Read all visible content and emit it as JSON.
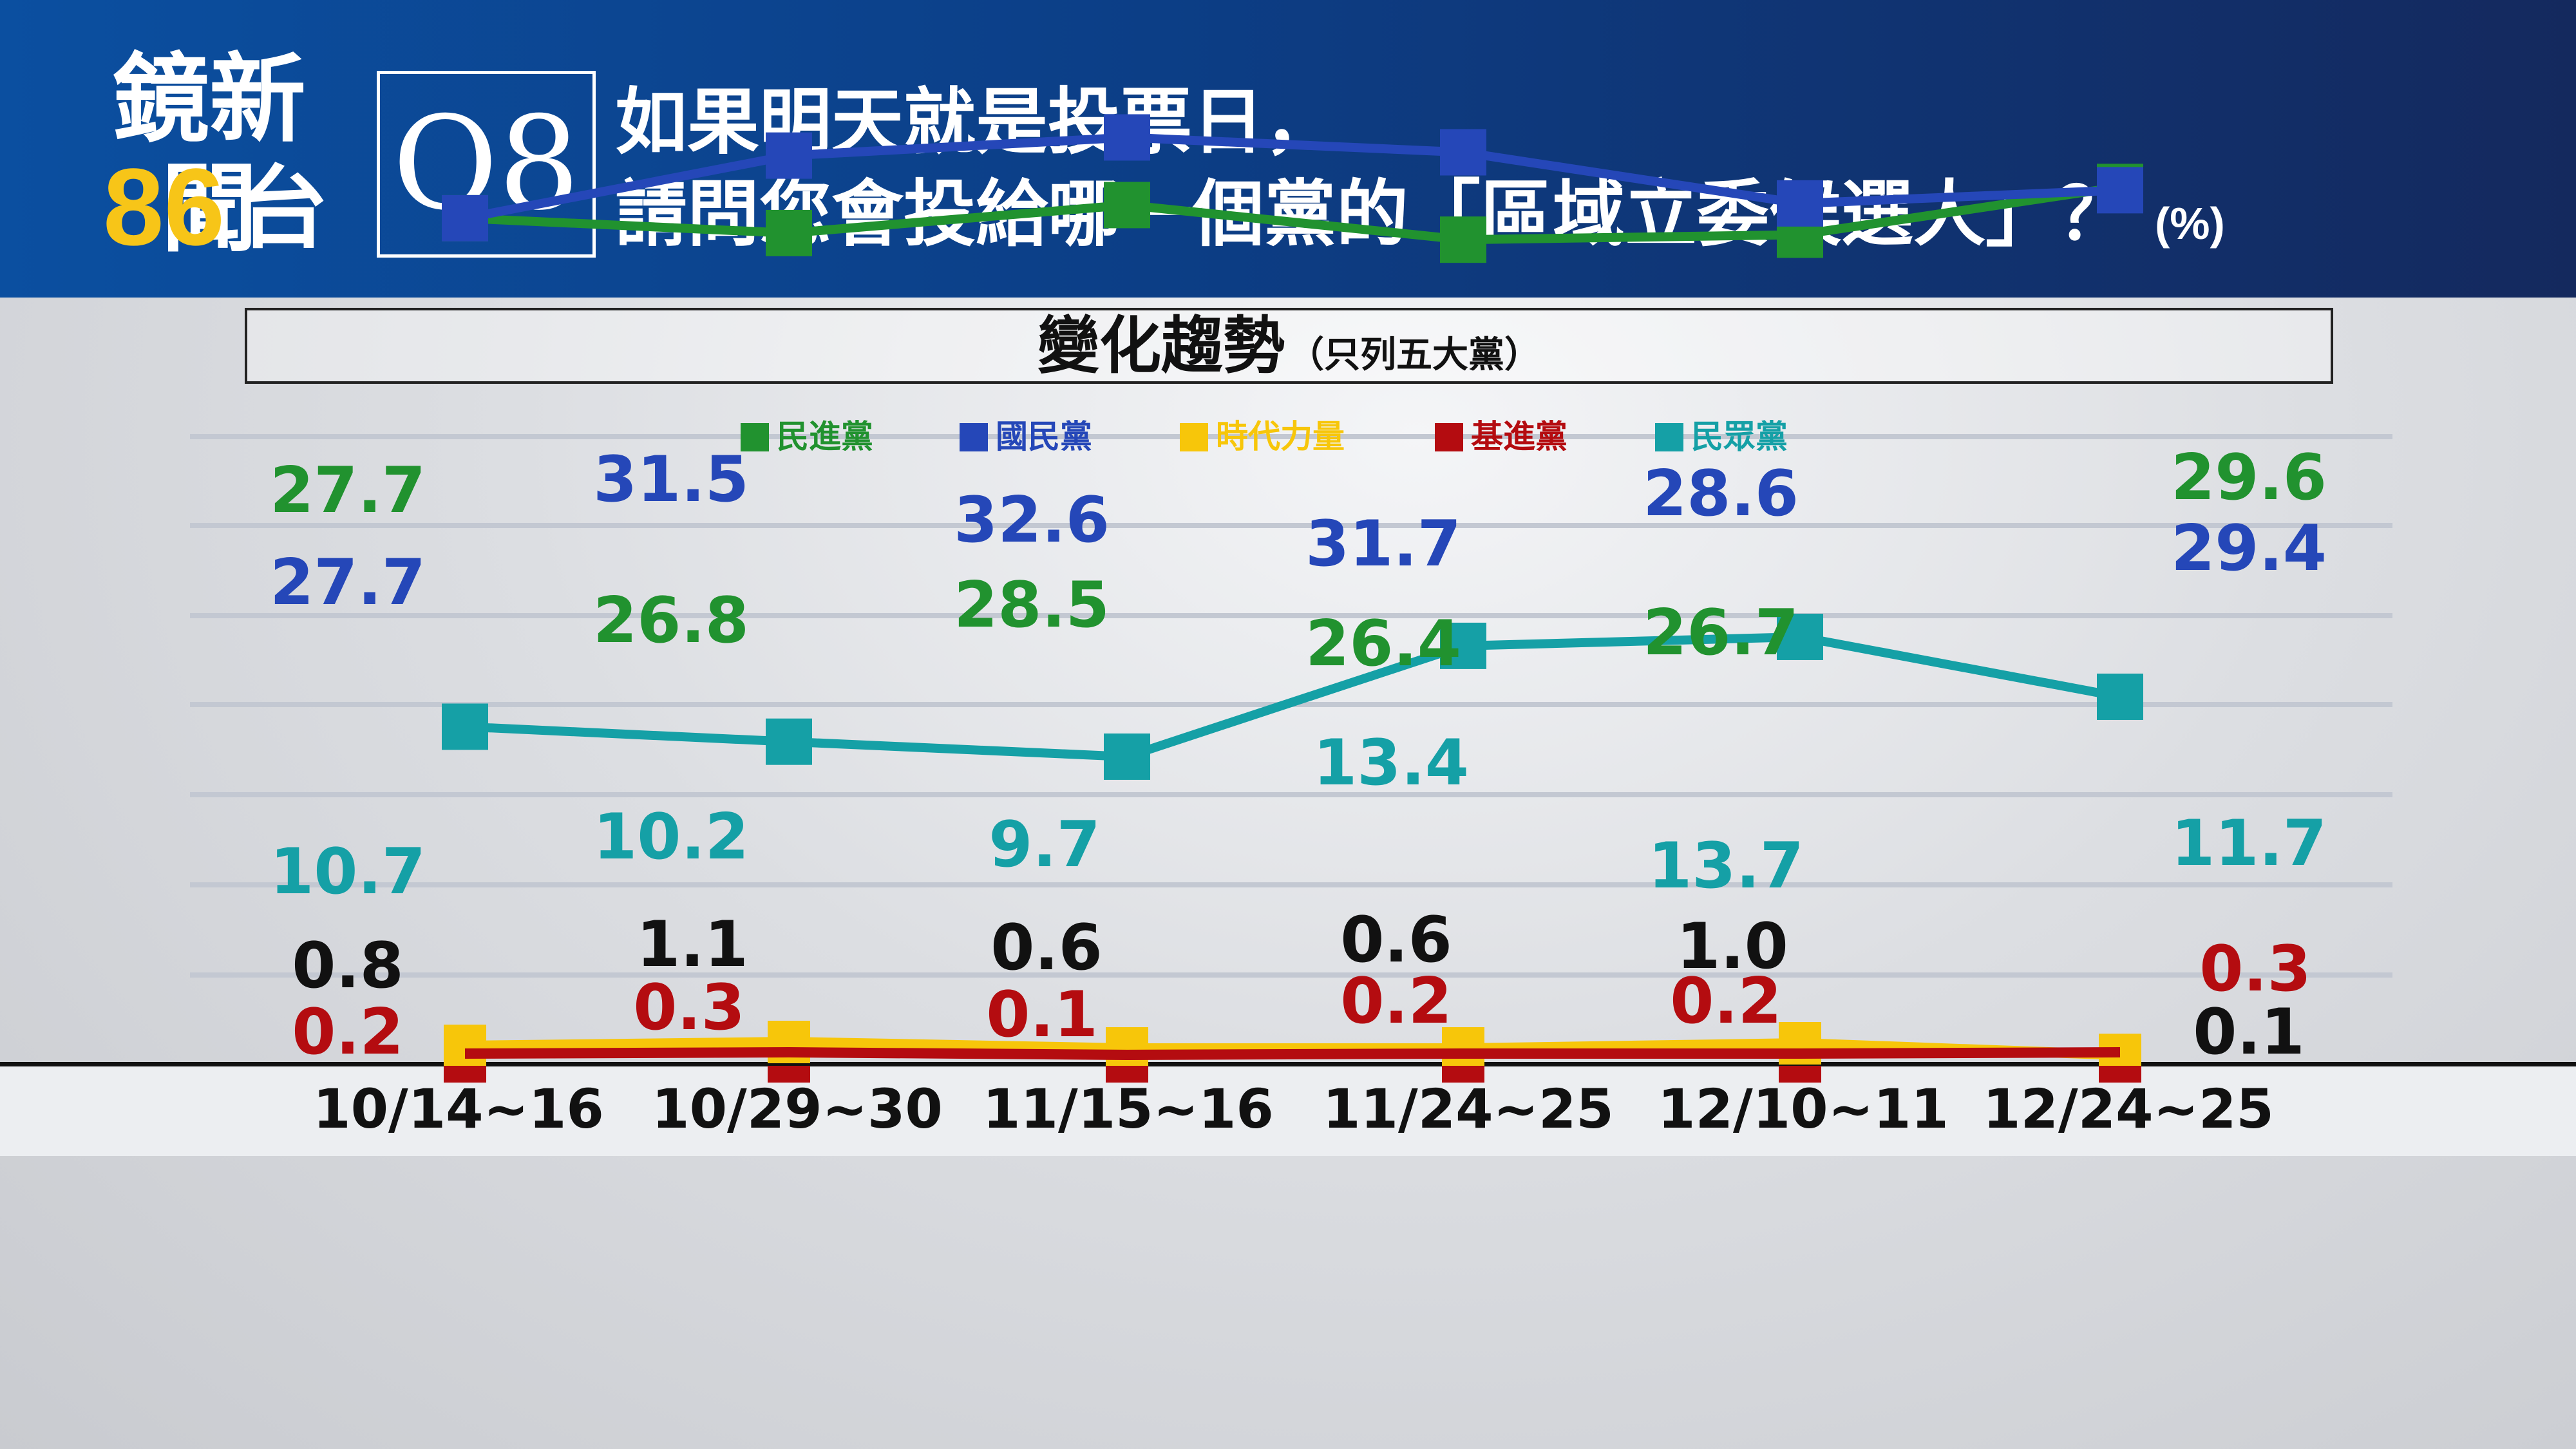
{
  "header": {
    "logo_name": "鏡新聞",
    "logo_number": "86",
    "logo_suffix": "台",
    "question_badge": "Q8",
    "question_line1": "如果明天就是投票日，",
    "question_line2": "請問您會投給哪一個黨的「區域立委候選人」？",
    "unit": "(%)"
  },
  "chart_title": "變化趨勢",
  "chart_subtitle": "（只列五大黨）",
  "colors": {
    "民進黨": "#21922f",
    "國民黨": "#2547b8",
    "時代力量": "#f7c60a",
    "基進黨": "#b40c10",
    "民眾黨": "#15a0a6"
  },
  "chart_data": {
    "type": "line",
    "categories": [
      "10/14~16",
      "10/29~30",
      "11/15~16",
      "11/24~25",
      "12/10~11",
      "12/24~25"
    ],
    "series": [
      {
        "name": "民進黨",
        "values": [
          27.7,
          26.8,
          28.5,
          26.4,
          26.7,
          29.6
        ],
        "labels": [
          "27.7",
          "26.8",
          "28.5",
          "26.4",
          "26.7",
          "29.6"
        ]
      },
      {
        "name": "國民黨",
        "values": [
          27.7,
          31.5,
          32.6,
          31.7,
          28.6,
          29.4
        ],
        "labels": [
          "27.7",
          "31.5",
          "32.6",
          "31.7",
          "28.6",
          "29.4"
        ]
      },
      {
        "name": "時代力量",
        "values": [
          0.8,
          1.1,
          0.6,
          0.6,
          1.0,
          0.1
        ],
        "labels": [
          "0.8",
          "1.1",
          "0.6",
          "0.6",
          "1.0",
          "0.1"
        ]
      },
      {
        "name": "基進黨",
        "values": [
          0.2,
          0.3,
          0.1,
          0.2,
          0.2,
          0.3
        ],
        "labels": [
          "0.2",
          "0.3",
          "0.1",
          "0.2",
          "0.2",
          "0.3"
        ]
      },
      {
        "name": "民眾黨",
        "values": [
          10.7,
          10.2,
          9.7,
          13.4,
          13.7,
          11.7
        ],
        "labels": [
          "10.7",
          "10.2",
          "9.7",
          "13.4",
          "13.7",
          "11.7"
        ]
      }
    ],
    "legend_position": "top",
    "grid": true
  }
}
